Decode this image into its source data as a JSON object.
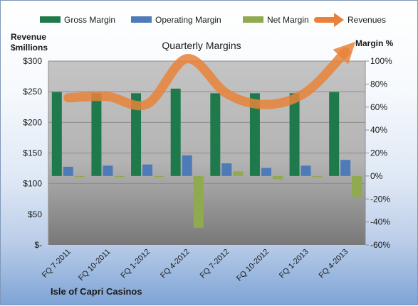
{
  "chart_data": {
    "type": "bar",
    "title": "Quarterly Margins",
    "company_label": "Isle of Capri Casinos",
    "left_axis": {
      "label_line1": "Revenue",
      "label_line2": "$millions",
      "ylim": [
        0,
        300
      ],
      "ticks": [
        0,
        50,
        100,
        150,
        200,
        250,
        300
      ],
      "tick_labels": [
        "$-",
        "$50",
        "$100",
        "$150",
        "$200",
        "$250",
        "$300"
      ]
    },
    "right_axis": {
      "label": "Margin %",
      "ylim": [
        -60,
        100
      ],
      "ticks": [
        -60,
        -40,
        -20,
        0,
        20,
        40,
        60,
        80,
        100
      ],
      "tick_labels": [
        "-60%",
        "-40%",
        "-20%",
        "0%",
        "20%",
        "40%",
        "60%",
        "80%",
        "100%"
      ]
    },
    "categories": [
      "FQ 7-2011",
      "FQ 10-2011",
      "FQ 1-2012",
      "FQ 4-2012",
      "FQ 7-2012",
      "FQ 10-2012",
      "FQ 1-2013",
      "FQ 4-2013"
    ],
    "series": [
      {
        "name": "Gross Margin",
        "type": "bar",
        "axis": "right",
        "color": "#1e7a4a",
        "values": [
          73,
          72,
          72,
          76,
          72,
          72,
          72,
          73
        ]
      },
      {
        "name": "Operating Margin",
        "type": "bar",
        "axis": "right",
        "color": "#4f7ab8",
        "values": [
          8,
          9,
          10,
          18,
          11,
          7,
          9,
          14
        ]
      },
      {
        "name": "Net Margin",
        "type": "bar",
        "axis": "right",
        "color": "#8faa4f",
        "values": [
          -1,
          -1,
          -1,
          -45,
          4,
          -3,
          -1,
          -18
        ]
      },
      {
        "name": "Revenues",
        "type": "line",
        "axis": "left",
        "color": "#e8823a",
        "values": [
          240,
          242,
          230,
          304,
          247,
          229,
          249,
          315
        ]
      }
    ],
    "legend_position": "top",
    "grid": true
  }
}
